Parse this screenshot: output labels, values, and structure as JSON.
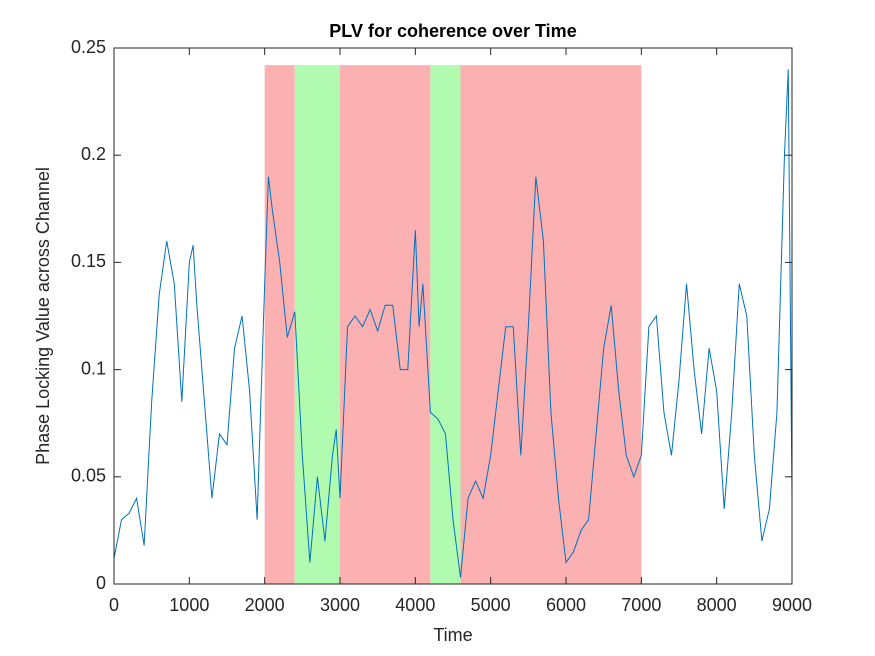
{
  "chart_data": {
    "type": "line",
    "title": "PLV for coherence over Time",
    "xlabel": "Time",
    "ylabel": "Phase Locking Value across Channel",
    "xlim": [
      0,
      9000
    ],
    "xticks": [
      0,
      1000,
      2000,
      3000,
      4000,
      5000,
      6000,
      7000,
      8000,
      9000
    ],
    "ylim": [
      0,
      0.25
    ],
    "yticks": [
      0,
      0.05,
      0.1,
      0.15,
      0.2,
      0.25
    ],
    "regions": [
      {
        "x": [
          2000,
          2400
        ],
        "top": 0.242,
        "color": "#fbb1b1"
      },
      {
        "x": [
          2400,
          3000
        ],
        "top": 0.242,
        "color": "#b1fbb1"
      },
      {
        "x": [
          3000,
          4200
        ],
        "top": 0.242,
        "color": "#fbb1b1"
      },
      {
        "x": [
          4200,
          4600
        ],
        "top": 0.242,
        "color": "#b1fbb1"
      },
      {
        "x": [
          4600,
          7000
        ],
        "top": 0.242,
        "color": "#fbb1b1"
      }
    ],
    "x": [
      0,
      100,
      200,
      300,
      400,
      500,
      600,
      700,
      800,
      900,
      1000,
      1050,
      1100,
      1200,
      1300,
      1400,
      1500,
      1600,
      1700,
      1800,
      1900,
      2000,
      2050,
      2100,
      2200,
      2300,
      2400,
      2500,
      2600,
      2700,
      2800,
      2900,
      2950,
      3000,
      3100,
      3200,
      3300,
      3400,
      3500,
      3600,
      3700,
      3800,
      3900,
      4000,
      4050,
      4100,
      4200,
      4300,
      4400,
      4500,
      4600,
      4700,
      4800,
      4900,
      5000,
      5100,
      5200,
      5300,
      5400,
      5500,
      5600,
      5700,
      5800,
      5900,
      6000,
      6100,
      6200,
      6300,
      6400,
      6500,
      6600,
      6700,
      6800,
      6900,
      7000,
      7100,
      7200,
      7300,
      7400,
      7500,
      7600,
      7700,
      7800,
      7900,
      8000,
      8100,
      8200,
      8300,
      8400,
      8500,
      8600,
      8700,
      8800,
      8900,
      8950,
      9000
    ],
    "series": [
      {
        "color": "#0072bd",
        "values": [
          0.012,
          0.03,
          0.033,
          0.04,
          0.018,
          0.085,
          0.135,
          0.16,
          0.14,
          0.085,
          0.15,
          0.158,
          0.13,
          0.085,
          0.04,
          0.07,
          0.065,
          0.11,
          0.125,
          0.09,
          0.03,
          0.14,
          0.19,
          0.175,
          0.15,
          0.115,
          0.127,
          0.06,
          0.01,
          0.05,
          0.02,
          0.06,
          0.072,
          0.04,
          0.12,
          0.125,
          0.12,
          0.128,
          0.118,
          0.13,
          0.13,
          0.1,
          0.1,
          0.165,
          0.12,
          0.14,
          0.08,
          0.077,
          0.07,
          0.03,
          0.003,
          0.04,
          0.048,
          0.04,
          0.06,
          0.09,
          0.12,
          0.12,
          0.06,
          0.12,
          0.19,
          0.16,
          0.08,
          0.04,
          0.01,
          0.015,
          0.025,
          0.03,
          0.07,
          0.11,
          0.13,
          0.09,
          0.06,
          0.05,
          0.06,
          0.12,
          0.125,
          0.08,
          0.06,
          0.095,
          0.14,
          0.1,
          0.07,
          0.11,
          0.09,
          0.035,
          0.08,
          0.14,
          0.125,
          0.06,
          0.02,
          0.035,
          0.08,
          0.2,
          0.24,
          0.04
        ]
      }
    ]
  }
}
